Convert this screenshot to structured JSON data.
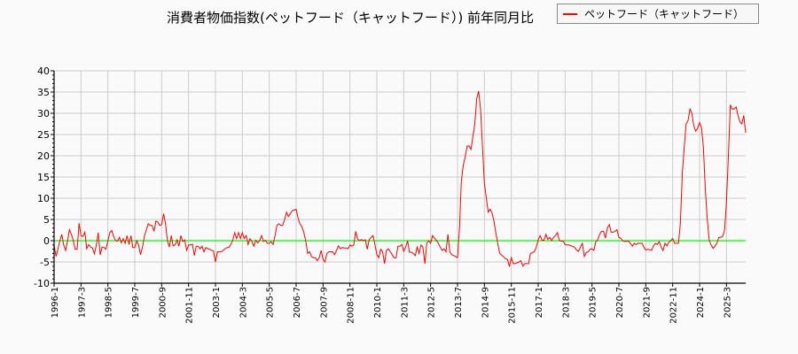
{
  "chart_data": {
    "type": "line",
    "title": "消費者物価指数(ペットフード（キャットフード）) 前年同月比",
    "xlabel": "",
    "ylabel": "",
    "ylim": [
      -10,
      40
    ],
    "yticks": [
      -10,
      -5,
      0,
      5,
      10,
      15,
      20,
      25,
      30,
      35,
      40
    ],
    "xticks": [
      "1996-1",
      "1997-3",
      "1998-5",
      "1999-7",
      "2000-9",
      "2001-11",
      "2003-1",
      "2004-3",
      "2005-5",
      "2006-7",
      "2007-9",
      "2008-11",
      "2010-1",
      "2011-3",
      "2012-5",
      "2013-7",
      "2014-9",
      "2015-11",
      "2017-1",
      "2018-3",
      "2019-5",
      "2020-7",
      "2021-9",
      "2022-11",
      "2024-1",
      "2025-3"
    ],
    "grid": true,
    "legend_position": "top-right",
    "reference_line": {
      "y": 0,
      "color": "#00ff00"
    },
    "series": [
      {
        "name": "ペットフード（キャットフード）",
        "color": "#ff0000",
        "frequency": "monthly",
        "values_by_year": {
          "1996": [
            -1,
            -3.7,
            -2,
            0,
            1.5,
            -1,
            -2.3,
            0,
            2.6,
            1.5,
            0,
            -2
          ],
          "1997": [
            -2,
            4.1,
            1.2,
            1,
            2,
            -1.9,
            -0.9,
            -1.5,
            -1.7,
            -3.1,
            -1,
            1.9
          ],
          "1998": [
            -3.3,
            -1.5,
            -1.6,
            -2,
            0,
            1.9,
            2.4,
            1,
            0,
            -0.1,
            0.8,
            -0.5
          ],
          "1999": [
            0.5,
            -0.6,
            1.2,
            -0.9,
            1.2,
            -1.6,
            -1.6,
            0,
            -1,
            -3.3,
            -1.5,
            1
          ],
          "2000": [
            2.5,
            4,
            3.6,
            3.6,
            2.2,
            4.6,
            4.4,
            3.6,
            3.8,
            6.4,
            4,
            0
          ],
          "2001": [
            -1.5,
            1.2,
            -1.2,
            -1,
            0.2,
            -1.3,
            1.2,
            -0.2,
            0.2,
            -2.3,
            -1,
            -1
          ],
          "2002": [
            -0.8,
            -3.5,
            -1.3,
            -1.3,
            -1.9,
            -1.3,
            -2.6,
            -1.6,
            -1.9,
            -2,
            -2.3,
            -2.4
          ],
          "2003": [
            -5,
            -2.6,
            -2.6,
            -2.6,
            -2.3,
            -1.9,
            -1.6,
            -1.6,
            -0.9,
            0.1,
            1.9,
            0.5
          ],
          "2004": [
            1.9,
            0.5,
            1.9,
            0.5,
            1.2,
            -0.9,
            0.5,
            -0.2,
            -1.3,
            0.1,
            -0.5,
            0
          ],
          "2005": [
            1.2,
            -0.2,
            0.1,
            -0.6,
            -0.6,
            -0.2,
            -0.9,
            1.2,
            3.6,
            4,
            3.6,
            3.6
          ],
          "2006": [
            5,
            6.7,
            5.7,
            6.4,
            7.1,
            7.2,
            7.4,
            5.3,
            4,
            3.3,
            1.9,
            0
          ],
          "2007": [
            -3,
            -2.6,
            -3.7,
            -4,
            -4,
            -4.7,
            -4,
            -2.3,
            -4.4,
            -5,
            -3,
            -2.6
          ],
          "2008": [
            -2.6,
            -2.6,
            -3.3,
            -2.3,
            -1.2,
            -1.9,
            -1.6,
            -1.7,
            -1.7,
            -1.9,
            -1,
            -1.3
          ],
          "2009": [
            -1,
            2.2,
            0.4,
            0,
            0.3,
            0,
            0.2,
            -2,
            0.2,
            0.8,
            1.2,
            -0.8
          ],
          "2010": [
            -3.3,
            -4,
            -2,
            -2.6,
            -5.4,
            -2.3,
            -1.9,
            -2.6,
            -3.3,
            -4,
            -4,
            -1.3
          ],
          "2011": [
            -1.3,
            -0.9,
            -2.5,
            -1.5,
            0,
            -2.7,
            -2.7,
            -3,
            -3.5,
            -1.5,
            -3,
            -1
          ],
          "2012": [
            -1.5,
            -5.4,
            -0.6,
            0,
            -0.6,
            1.2,
            0.6,
            0.1,
            -0.6,
            -1.5,
            -2.3,
            -1.9
          ],
          "2013": [
            -2.6,
            1.5,
            -2.6,
            -3.3,
            -3.5,
            -3.7,
            -4,
            3,
            14,
            17.8,
            19.8,
            22.3
          ],
          "2014": [
            22.3,
            21.5,
            24.5,
            27.5,
            33.5,
            35.2,
            31,
            22,
            13.5,
            10,
            6.7,
            7.4
          ],
          "2015": [
            6.5,
            4.5,
            1.8,
            -0.8,
            -3,
            -3.4,
            -3.8,
            -4.3,
            -4.4,
            -6.1,
            -4,
            -5.4
          ],
          "2016": [
            -5.4,
            -5.2,
            -5,
            -4.7,
            -6,
            -5.4,
            -5.4,
            -5.4,
            -3,
            -2.8,
            -2.6,
            -1.5
          ],
          "2017": [
            0.2,
            1.2,
            0.1,
            0.1,
            1.5,
            0.3,
            0.8,
            0,
            0.8,
            1.2,
            1.9,
            0
          ],
          "2018": [
            -0.1,
            -0.1,
            -0.9,
            -1,
            -1,
            -1.2,
            -1.3,
            -1.6,
            -2.2,
            -2.5,
            -1.5,
            -0.6
          ],
          "2019": [
            -3.7,
            -2.8,
            -2.6,
            -2,
            -1.9,
            -2.3,
            -0.2,
            0.2,
            1.5,
            2.2,
            2.2,
            0.6
          ],
          "2020": [
            3,
            3.8,
            2,
            2,
            2.2,
            2.6,
            0.8,
            0.6,
            0,
            -0.2,
            -0.1,
            -0.1
          ],
          "2021": [
            -0.6,
            -1.3,
            -0.6,
            -0.9,
            -0.6,
            -0.6,
            -0.6,
            -1.5,
            -2.2,
            -2,
            -2.1,
            -2.3
          ],
          "2022": [
            -1.2,
            -0.6,
            -0.9,
            -0.2,
            -1.5,
            -2.3,
            -0.6,
            -1.2,
            -0.4,
            0,
            0.5,
            -0.6
          ],
          "2023": [
            -0.6,
            -0.6,
            4,
            15.7,
            22,
            27.5,
            28.3,
            31,
            30,
            27,
            25.8,
            26.5
          ],
          "2024": [
            27.8,
            26.6,
            22,
            12,
            5,
            0.2,
            -1,
            -1.8,
            -1.3,
            -0.6,
            0.8,
            0.8
          ],
          "2025": [
            1,
            2.5,
            9,
            20,
            32,
            31,
            31,
            31.5,
            29.5,
            28,
            27.5,
            29.5
          ],
          "2026": [
            25.4
          ]
        }
      }
    ]
  }
}
